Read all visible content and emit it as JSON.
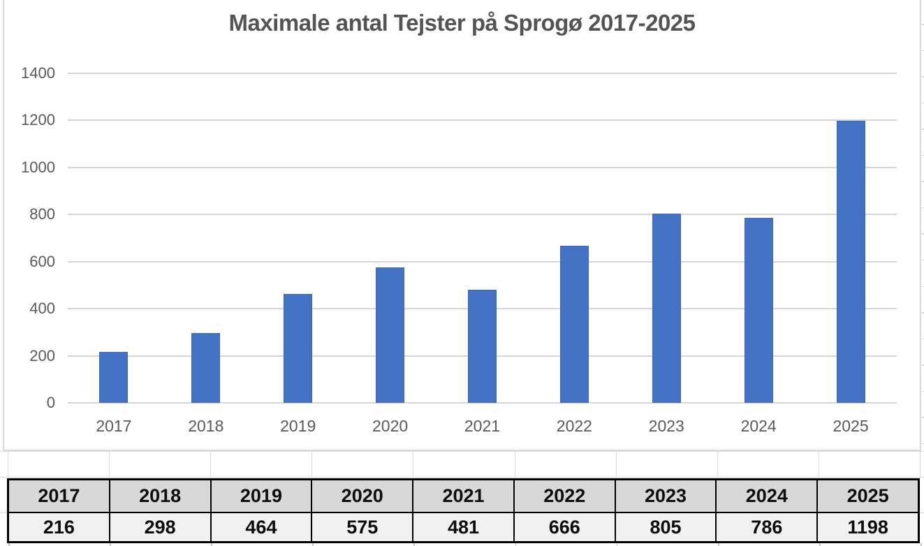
{
  "chart_data": {
    "type": "bar",
    "title": "Maximale antal Tejster på Sprogø 2017-2025",
    "categories": [
      "2017",
      "2018",
      "2019",
      "2020",
      "2021",
      "2022",
      "2023",
      "2024",
      "2025"
    ],
    "values": [
      216,
      298,
      464,
      575,
      481,
      666,
      805,
      786,
      1198
    ],
    "xlabel": "",
    "ylabel": "",
    "ylim": [
      0,
      1400
    ],
    "yticks": [
      0,
      200,
      400,
      600,
      800,
      1000,
      1200,
      1400
    ],
    "grid": true,
    "legend_position": "none",
    "bar_color": "#4473C5",
    "bar_border_color": "#3E68B0",
    "gridline_color": "#D5D5D5",
    "axis_text_color": "#595959",
    "title_color": "#545454"
  },
  "table": {
    "years": [
      "2017",
      "2018",
      "2019",
      "2020",
      "2021",
      "2022",
      "2023",
      "2024",
      "2025"
    ],
    "values": [
      "216",
      "298",
      "464",
      "575",
      "481",
      "666",
      "805",
      "786",
      "1198"
    ],
    "header_bg": "#D8D8D8",
    "value_bg": "#F1F1F1",
    "border_color": "#000000"
  }
}
